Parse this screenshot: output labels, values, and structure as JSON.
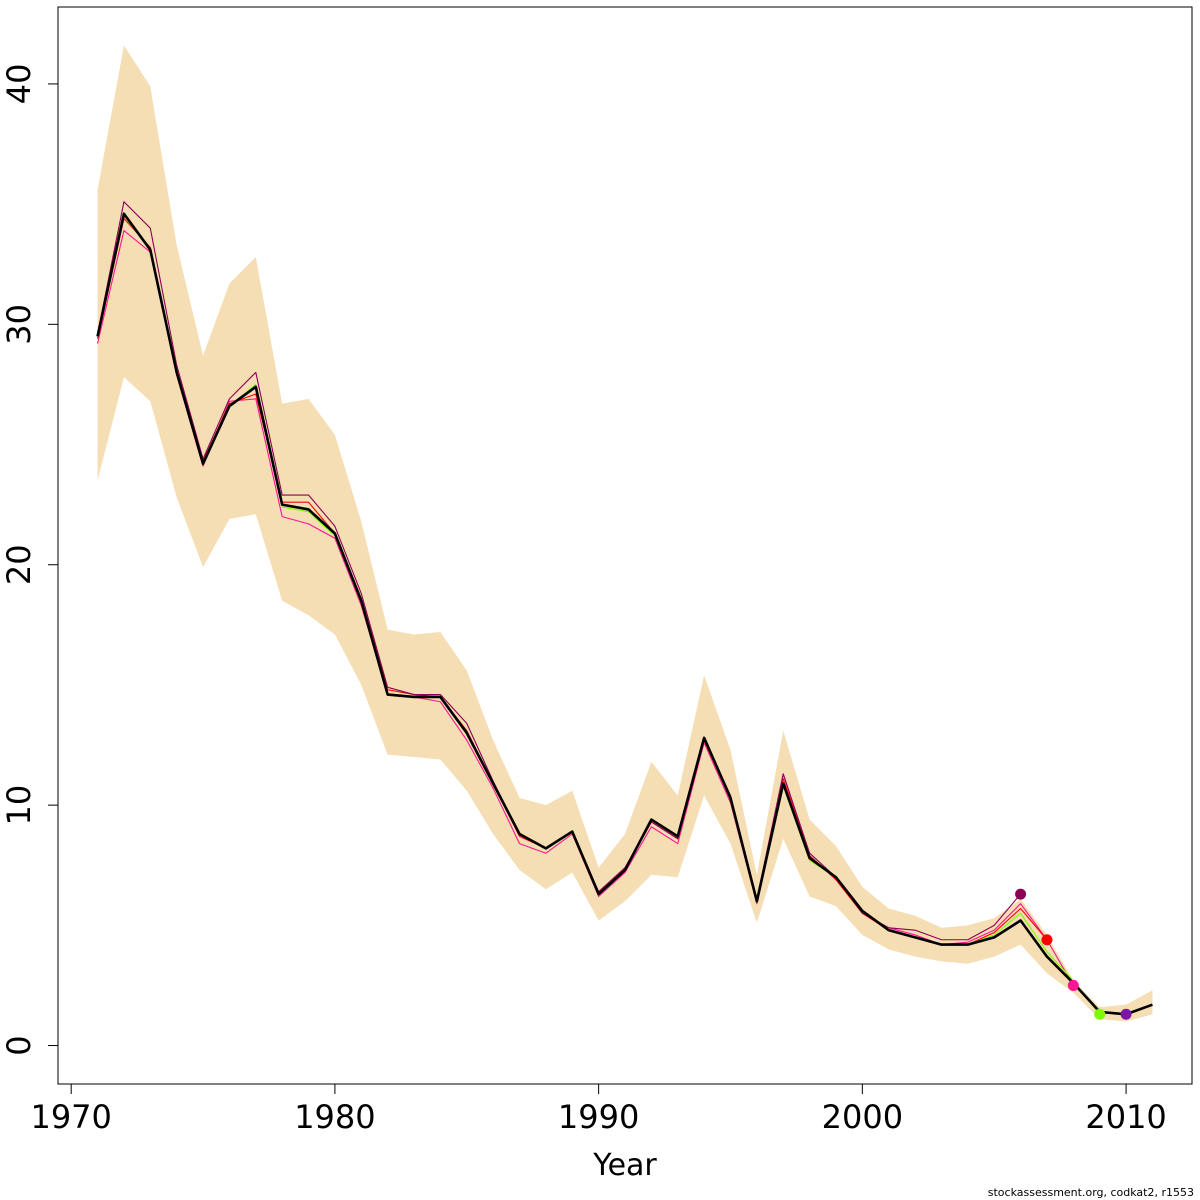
{
  "chart_data": {
    "type": "line",
    "title": "",
    "xlabel": "Year",
    "ylabel": "",
    "xlim": [
      1969.5,
      2012.5
    ],
    "ylim": [
      -1.6,
      43.2
    ],
    "x_ticks": [
      1970,
      1980,
      1990,
      2000,
      2010
    ],
    "y_ticks": [
      0,
      10,
      20,
      30,
      40
    ],
    "credit": "stockassessment.org, codkat2, r1553",
    "confidence_band": {
      "color": "#f5deb3",
      "x": [
        1971,
        1972,
        1973,
        1974,
        1975,
        1976,
        1977,
        1978,
        1979,
        1980,
        1981,
        1982,
        1983,
        1984,
        1985,
        1986,
        1987,
        1988,
        1989,
        1990,
        1991,
        1992,
        1993,
        1994,
        1995,
        1996,
        1997,
        1998,
        1999,
        2000,
        2001,
        2002,
        2003,
        2004,
        2005,
        2006,
        2007,
        2008,
        2009,
        2010,
        2011
      ],
      "upper": [
        35.6,
        41.6,
        39.9,
        33.3,
        28.7,
        31.7,
        32.8,
        26.7,
        26.9,
        25.4,
        21.8,
        17.3,
        17.1,
        17.2,
        15.6,
        12.7,
        10.3,
        10.0,
        10.6,
        7.4,
        8.8,
        11.8,
        10.4,
        15.4,
        12.3,
        7.1,
        13.1,
        9.4,
        8.3,
        6.6,
        5.7,
        5.4,
        4.9,
        5.0,
        5.3,
        6.1,
        4.6,
        2.7,
        1.6,
        1.7,
        2.3
      ],
      "lower": [
        23.5,
        27.8,
        26.8,
        22.8,
        19.9,
        21.9,
        22.1,
        18.5,
        17.9,
        17.1,
        15.0,
        12.1,
        12.0,
        11.9,
        10.6,
        8.8,
        7.3,
        6.5,
        7.2,
        5.2,
        6.0,
        7.1,
        7.0,
        10.4,
        8.4,
        5.1,
        8.6,
        6.2,
        5.8,
        4.6,
        4.0,
        3.7,
        3.5,
        3.4,
        3.7,
        4.2,
        3.0,
        2.2,
        1.1,
        1.0,
        1.3
      ]
    },
    "series": [
      {
        "color": "#000000",
        "x": [
          1971,
          1972,
          1973,
          1974,
          1975,
          1976,
          1977,
          1978,
          1979,
          1980,
          1981,
          1982,
          1983,
          1984,
          1985,
          1986,
          1987,
          1988,
          1989,
          1990,
          1991,
          1992,
          1993,
          1994,
          1995,
          1996,
          1997,
          1998,
          1999,
          2000,
          2001,
          2002,
          2003,
          2004,
          2005,
          2006,
          2007,
          2008,
          2009,
          2010,
          2011
        ],
        "values": [
          29.5,
          34.6,
          33.1,
          28.0,
          24.2,
          26.6,
          27.4,
          22.5,
          22.3,
          21.3,
          18.5,
          14.6,
          14.5,
          14.5,
          13.0,
          10.9,
          8.8,
          8.2,
          8.9,
          6.3,
          7.3,
          9.4,
          8.7,
          12.8,
          10.3,
          6.0,
          10.9,
          7.8,
          7.0,
          5.6,
          4.8,
          4.5,
          4.2,
          4.2,
          4.5,
          5.2,
          3.7,
          2.6,
          1.4,
          1.3,
          1.7
        ]
      },
      {
        "color": "#ff1493",
        "x": [
          1971,
          1972,
          1973,
          1974,
          1975,
          1976,
          1977,
          1978,
          1979,
          1980,
          1981,
          1982,
          1983,
          1984,
          1985,
          1986,
          1987,
          1988,
          1989,
          1990,
          1991,
          1992,
          1993,
          1994,
          1995,
          1996,
          1997,
          1998,
          1999,
          2000,
          2001,
          2002,
          2003,
          2004,
          2005,
          2006,
          2007,
          2008
        ],
        "values": [
          29.2,
          33.9,
          33.0,
          27.9,
          24.1,
          26.8,
          26.9,
          22.0,
          21.7,
          21.1,
          18.3,
          14.6,
          14.5,
          14.3,
          12.7,
          10.7,
          8.4,
          8.0,
          8.8,
          6.2,
          7.2,
          9.1,
          8.4,
          12.6,
          10.1,
          5.9,
          11.3,
          7.9,
          6.9,
          5.5,
          4.9,
          4.6,
          4.2,
          4.3,
          4.8,
          5.9,
          4.4,
          2.5
        ]
      },
      {
        "color": "#ff0000",
        "x": [
          1971,
          1972,
          1973,
          1974,
          1975,
          1976,
          1977,
          1978,
          1979,
          1980,
          1981,
          1982,
          1983,
          1984,
          1985,
          1986,
          1987,
          1988,
          1989,
          1990,
          1991,
          1992,
          1993,
          1994,
          1995,
          1996,
          1997,
          1998,
          1999,
          2000,
          2001,
          2002,
          2003,
          2004,
          2005,
          2006,
          2007
        ],
        "values": [
          29.4,
          34.4,
          33.2,
          28.1,
          24.3,
          26.7,
          27.1,
          22.6,
          22.6,
          21.3,
          18.6,
          14.8,
          14.6,
          14.5,
          13.1,
          10.9,
          8.7,
          8.2,
          8.9,
          6.3,
          7.3,
          9.3,
          8.6,
          12.7,
          10.3,
          6.0,
          11.1,
          7.9,
          6.9,
          5.5,
          4.8,
          4.5,
          4.2,
          4.2,
          4.7,
          5.7,
          4.4
        ]
      },
      {
        "color": "#8b0057",
        "x": [
          1971,
          1972,
          1973,
          1974,
          1975,
          1976,
          1977,
          1978,
          1979,
          1980,
          1981,
          1982,
          1983,
          1984,
          1985,
          1986,
          1987,
          1988,
          1989,
          1990,
          1991,
          1992,
          1993,
          1994,
          1995,
          1996,
          1997,
          1998,
          1999,
          2000,
          2001,
          2002,
          2003,
          2004,
          2005,
          2006
        ],
        "values": [
          29.6,
          35.1,
          34.0,
          28.3,
          24.4,
          26.9,
          28.0,
          22.9,
          22.9,
          21.6,
          18.8,
          14.9,
          14.6,
          14.6,
          13.4,
          11.0,
          8.8,
          8.2,
          8.9,
          6.4,
          7.4,
          9.3,
          8.6,
          12.8,
          10.4,
          6.1,
          11.3,
          8.0,
          7.0,
          5.5,
          4.9,
          4.8,
          4.4,
          4.4,
          5.0,
          6.3
        ]
      },
      {
        "color": "#7cfc00",
        "x": [
          1971,
          1972,
          1973,
          1974,
          1975,
          1976,
          1977,
          1978,
          1979,
          1980,
          1981,
          1982,
          1983,
          1984,
          1985,
          1986,
          1987,
          1988,
          1989,
          1990,
          1991,
          1992,
          1993,
          1994,
          1995,
          1996,
          1997,
          1998,
          1999,
          2000,
          2001,
          2002,
          2003,
          2004,
          2005,
          2006,
          2007,
          2008,
          2009
        ],
        "values": [
          29.5,
          34.5,
          33.1,
          28.0,
          24.2,
          26.6,
          27.5,
          22.4,
          22.2,
          21.2,
          18.5,
          14.6,
          14.5,
          14.5,
          13.0,
          10.9,
          8.8,
          8.2,
          8.9,
          6.3,
          7.3,
          9.4,
          8.7,
          12.8,
          10.3,
          6.0,
          10.8,
          7.7,
          7.0,
          5.6,
          4.8,
          4.5,
          4.2,
          4.2,
          4.6,
          5.5,
          3.9,
          2.7,
          1.3
        ]
      }
    ],
    "points": [
      {
        "x": 2006,
        "y": 6.3,
        "color": "#8b0057"
      },
      {
        "x": 2007,
        "y": 4.4,
        "color": "#ff0000"
      },
      {
        "x": 2008,
        "y": 2.5,
        "color": "#ff1493"
      },
      {
        "x": 2009,
        "y": 1.3,
        "color": "#7cfc00"
      },
      {
        "x": 2010,
        "y": 1.3,
        "color": "#7b14a8"
      }
    ]
  }
}
